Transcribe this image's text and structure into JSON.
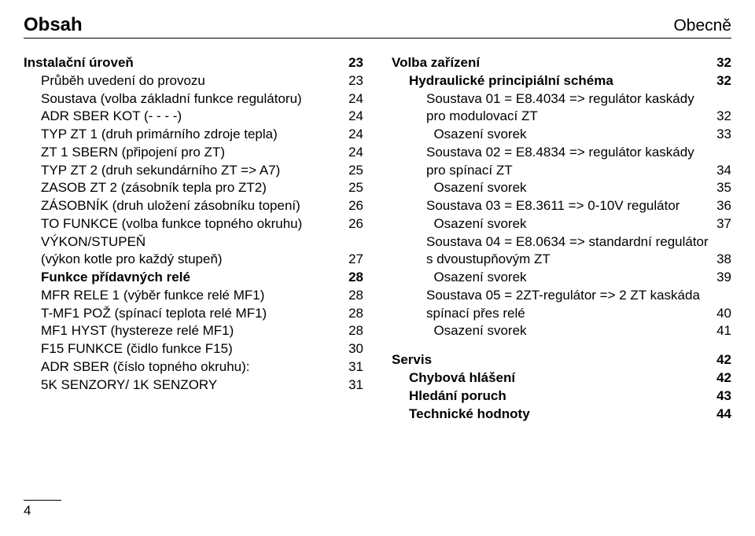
{
  "header": {
    "left": "Obsah",
    "right": "Obecně"
  },
  "page_number": "4",
  "left_col": [
    {
      "label": "Instalační úroveň",
      "page": "23",
      "cls": "lvl0"
    },
    {
      "label": "Průběh uvedení do provozu",
      "page": "23",
      "cls": "lvl1"
    },
    {
      "label": "Soustava (volba základní funkce regulátoru)",
      "page": "24",
      "cls": "lvl1"
    },
    {
      "label": "ADR SBER KOT (- - - -)",
      "page": "24",
      "cls": "lvl1"
    },
    {
      "label": "TYP ZT 1 (druh primárního zdroje tepla)",
      "page": "24",
      "cls": "lvl1"
    },
    {
      "label": "ZT 1 SBERN (připojení pro ZT)",
      "page": "24",
      "cls": "lvl1"
    },
    {
      "label": "TYP ZT 2 (druh sekundárního ZT => A7)",
      "page": "25",
      "cls": "lvl1"
    },
    {
      "label": "ZASOB ZT 2 (zásobník tepla pro ZT2)",
      "page": "25",
      "cls": "lvl1"
    },
    {
      "label": "ZÁSOBNÍK (druh uložení zásobníku topení)",
      "page": "26",
      "cls": "lvl1"
    },
    {
      "label": "TO FUNKCE (volba funkce topného okruhu)",
      "page": "26",
      "cls": "lvl1"
    },
    {
      "label": "VÝKON/STUPEŇ",
      "page": "",
      "cls": "lvl1"
    },
    {
      "label": "(výkon kotle pro každý stupeň)",
      "page": "27",
      "cls": "lvl1"
    },
    {
      "label": "Funkce přídavných relé",
      "page": "28",
      "cls": "lvl1b"
    },
    {
      "label": "MFR RELE 1 (výběr funkce relé MF1)",
      "page": "28",
      "cls": "lvl1"
    },
    {
      "label": "T-MF1 POŽ (spínací teplota relé MF1)",
      "page": "28",
      "cls": "lvl1"
    },
    {
      "label": "MF1 HYST (hystereze relé MF1)",
      "page": "28",
      "cls": "lvl1"
    },
    {
      "label": "F15 FUNKCE (čidlo funkce F15)",
      "page": "30",
      "cls": "lvl1"
    },
    {
      "label": "ADR SBER (číslo topného okruhu):",
      "page": "31",
      "cls": "lvl1"
    },
    {
      "label": "5K SENZORY/ 1K SENZORY",
      "page": "31",
      "cls": "lvl1"
    }
  ],
  "right_col": [
    {
      "label": "Volba zařízení",
      "page": "32",
      "cls": "lvl0"
    },
    {
      "label": "Hydraulické principiální schéma",
      "page": "32",
      "cls": "lvl1b"
    },
    {
      "label": "Soustava 01 = E8.4034 => regulátor kaskády",
      "page": "",
      "cls": "lvl2"
    },
    {
      "label": "pro modulovací ZT",
      "page": "32",
      "cls": "lvl2"
    },
    {
      "label": "  Osazení svorek",
      "page": "33",
      "cls": "lvl2"
    },
    {
      "label": "Soustava 02 = E8.4834 => regulátor kaskády",
      "page": "",
      "cls": "lvl2"
    },
    {
      "label": "pro spínací ZT",
      "page": "34",
      "cls": "lvl2"
    },
    {
      "label": "  Osazení svorek",
      "page": "35",
      "cls": "lvl2"
    },
    {
      "label": "Soustava 03 = E8.3611 => 0-10V regulátor",
      "page": "36",
      "cls": "lvl2"
    },
    {
      "label": "  Osazení svorek",
      "page": "37",
      "cls": "lvl2"
    },
    {
      "label": "Soustava 04 = E8.0634 => standardní regulátor",
      "page": "",
      "cls": "lvl2"
    },
    {
      "label": "s dvoustupňovým ZT",
      "page": "38",
      "cls": "lvl2"
    },
    {
      "label": "  Osazení svorek",
      "page": "39",
      "cls": "lvl2"
    },
    {
      "label": "Soustava 05 = 2ZT-regulátor => 2 ZT kaskáda",
      "page": "",
      "cls": "lvl2"
    },
    {
      "label": "spínací přes relé",
      "page": "40",
      "cls": "lvl2"
    },
    {
      "label": "  Osazení svorek",
      "page": "41",
      "cls": "lvl2"
    },
    {
      "label": "Servis",
      "page": "42",
      "cls": "lvl0 section-gap"
    },
    {
      "label": "Chybová hlášení",
      "page": "42",
      "cls": "lvl1b"
    },
    {
      "label": "Hledání poruch",
      "page": "43",
      "cls": "lvl1b"
    },
    {
      "label": "Technické hodnoty",
      "page": "44",
      "cls": "lvl1b"
    }
  ]
}
